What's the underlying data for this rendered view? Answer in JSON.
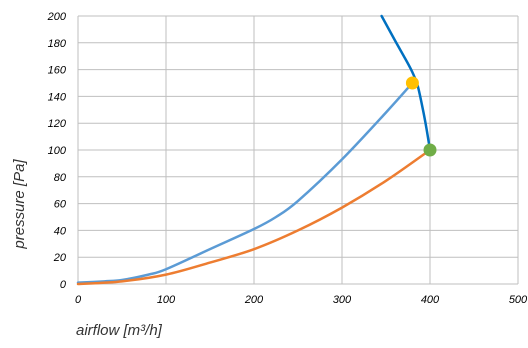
{
  "chart_data": {
    "type": "line",
    "title": "",
    "xlabel": "airflow [m³/h]",
    "ylabel": "pressure [Pa]",
    "xlim": [
      0,
      500
    ],
    "ylim": [
      0,
      200
    ],
    "x_ticks": [
      0,
      100,
      200,
      300,
      400,
      500
    ],
    "y_ticks": [
      0,
      20,
      40,
      60,
      80,
      100,
      120,
      140,
      160,
      180,
      200
    ],
    "x_tick_labels": [
      "0",
      "100",
      "200",
      "300",
      "400",
      "500"
    ],
    "y_tick_labels": [
      "0",
      "20",
      "40",
      "60",
      "80",
      "100",
      "120",
      "140",
      "160",
      "180",
      "200"
    ],
    "grid": true,
    "legend": "none",
    "series": [
      {
        "color": "#0070c0",
        "points": [
          [
            345,
            200
          ],
          [
            360,
            182
          ],
          [
            372,
            168
          ],
          [
            380,
            158
          ],
          [
            386,
            148
          ],
          [
            392,
            130
          ],
          [
            396,
            116
          ],
          [
            400,
            100
          ]
        ]
      },
      {
        "color": "#5b9bd5",
        "points": [
          [
            0,
            1
          ],
          [
            30,
            2
          ],
          [
            50,
            3
          ],
          [
            80,
            7
          ],
          [
            100,
            11
          ],
          [
            150,
            26
          ],
          [
            200,
            41
          ],
          [
            225,
            50
          ],
          [
            250,
            62
          ],
          [
            300,
            93
          ],
          [
            350,
            128
          ],
          [
            380,
            150
          ]
        ]
      },
      {
        "color": "#ed7d31",
        "points": [
          [
            0,
            0
          ],
          [
            50,
            2
          ],
          [
            100,
            7
          ],
          [
            150,
            16
          ],
          [
            200,
            26
          ],
          [
            250,
            40
          ],
          [
            300,
            57
          ],
          [
            350,
            77
          ],
          [
            400,
            100
          ]
        ]
      }
    ],
    "markers": [
      {
        "x": 380,
        "y": 150,
        "color": "#ffc000"
      },
      {
        "x": 400,
        "y": 100,
        "color": "#70ad47"
      }
    ]
  }
}
